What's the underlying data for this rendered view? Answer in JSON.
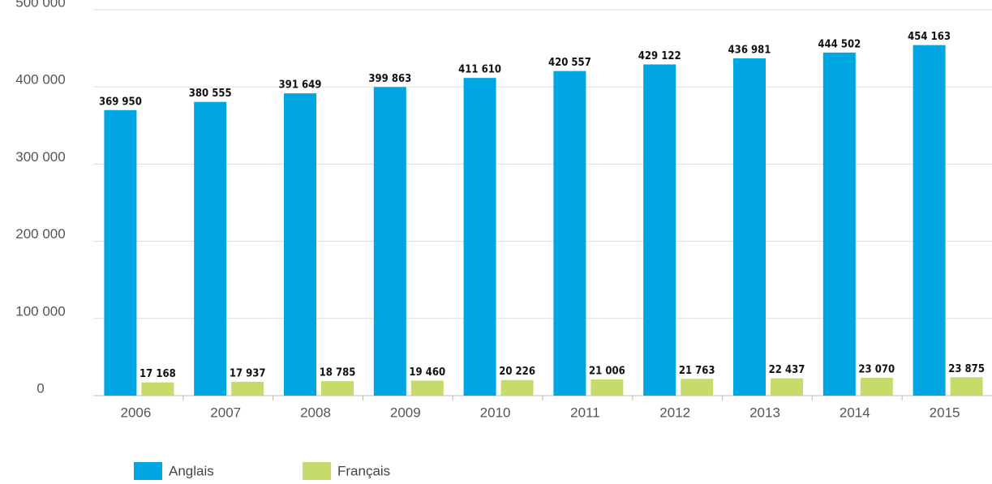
{
  "chart_data": {
    "type": "bar",
    "categories": [
      "2006",
      "2007",
      "2008",
      "2009",
      "2010",
      "2011",
      "2012",
      "2013",
      "2014",
      "2015"
    ],
    "series": [
      {
        "name": "Anglais",
        "color": "#00a6e2",
        "values": [
          369950,
          380555,
          391649,
          399863,
          411610,
          420557,
          429122,
          436981,
          444502,
          454163
        ],
        "value_labels": [
          "369 950",
          "380 555",
          "391 649",
          "399 863",
          "411 610",
          "420 557",
          "429 122",
          "436 981",
          "444 502",
          "454 163"
        ]
      },
      {
        "name": "Français",
        "color": "#c5dc6a",
        "values": [
          17168,
          17937,
          18785,
          19460,
          20226,
          21006,
          21763,
          22437,
          23070,
          23875
        ],
        "value_labels": [
          "17 168",
          "17 937",
          "18 785",
          "19 460",
          "20 226",
          "21 006",
          "21 763",
          "22 437",
          "23 070",
          "23 875"
        ]
      }
    ],
    "ylim": [
      0,
      500000
    ],
    "yticks": [
      0,
      {
        "value": 100000,
        "label": "100 000"
      },
      {
        "value": 200000,
        "label": "200 000"
      },
      {
        "value": 300000,
        "label": "300 000"
      },
      {
        "value": 400000,
        "label": "400 000"
      },
      {
        "value": 500000,
        "label": "500 000"
      }
    ],
    "grid": true
  }
}
